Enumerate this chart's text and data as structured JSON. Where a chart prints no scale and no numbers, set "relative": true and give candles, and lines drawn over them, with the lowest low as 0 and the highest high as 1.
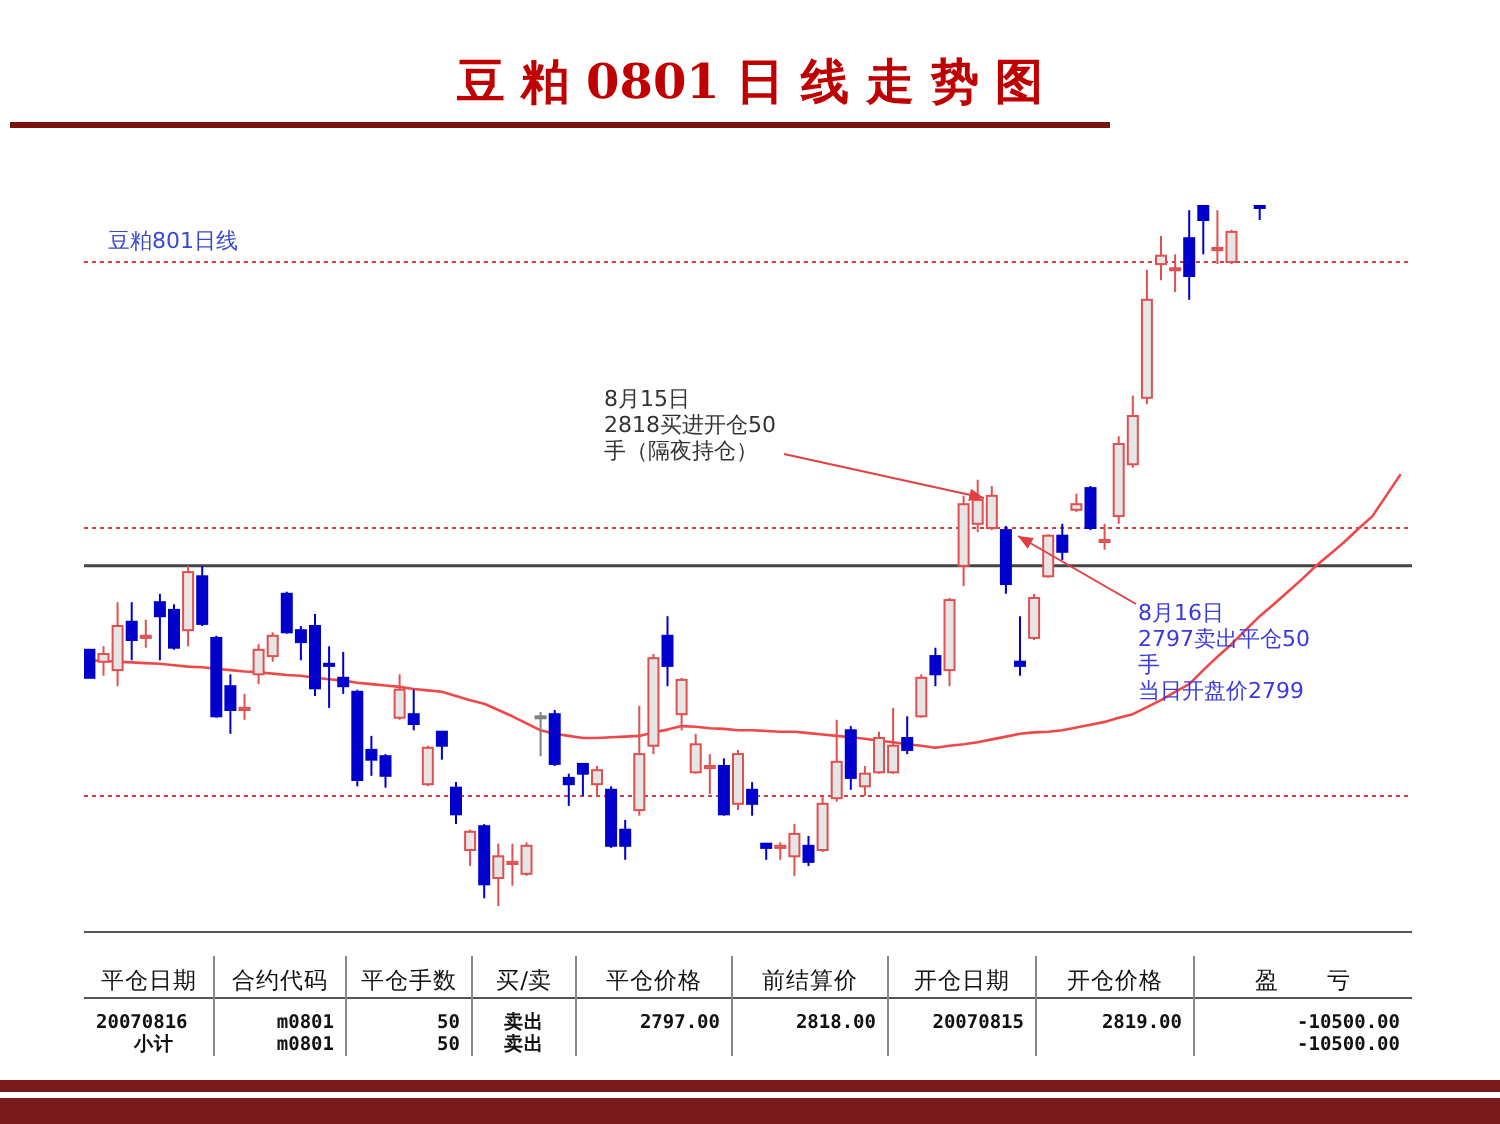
{
  "chart_data": {
    "type": "candlestick",
    "relative": true,
    "title": "豆 粕 0801 日 线 走 势 图",
    "subtitle": "豆粕801日线",
    "categories": [
      null,
      null,
      null,
      null,
      null,
      null,
      null,
      null,
      null,
      null,
      null,
      null,
      null,
      null,
      null,
      null,
      null,
      null,
      null,
      null,
      null,
      null,
      null,
      null,
      null,
      null,
      null,
      null,
      null,
      null,
      null,
      null,
      null,
      null,
      null,
      null,
      null,
      null,
      null,
      null,
      null,
      null,
      null,
      null,
      null,
      null,
      null,
      null,
      null,
      null,
      null,
      null,
      null,
      null,
      null,
      null,
      null,
      null,
      null,
      null,
      null,
      null,
      null,
      null,
      null,
      null,
      null,
      null,
      null,
      null,
      null,
      null,
      null,
      null,
      null,
      null,
      null,
      null,
      null,
      null,
      null,
      null,
      null,
      null,
      null,
      null,
      null,
      null,
      null,
      null,
      null,
      null,
      null,
      null
    ],
    "ohlc": [
      [
        0.366,
        0.366,
        0.326,
        0.326
      ],
      [
        0.349,
        0.371,
        0.329,
        0.36
      ],
      [
        0.337,
        0.434,
        0.314,
        0.4
      ],
      [
        0.406,
        0.434,
        0.351,
        0.38
      ],
      [
        0.383,
        0.409,
        0.369,
        0.386
      ],
      [
        0.434,
        0.446,
        0.351,
        0.414
      ],
      [
        0.423,
        0.431,
        0.366,
        0.369
      ],
      [
        0.394,
        0.486,
        0.371,
        0.477
      ],
      [
        0.471,
        0.486,
        0.4,
        0.403
      ],
      [
        0.383,
        0.386,
        0.269,
        0.271
      ],
      [
        0.314,
        0.331,
        0.246,
        0.28
      ],
      [
        0.28,
        0.303,
        0.266,
        0.283
      ],
      [
        0.331,
        0.374,
        0.317,
        0.366
      ],
      [
        0.357,
        0.391,
        0.349,
        0.386
      ],
      [
        0.446,
        0.449,
        0.389,
        0.391
      ],
      [
        0.394,
        0.4,
        0.351,
        0.377
      ],
      [
        0.4,
        0.417,
        0.3,
        0.311
      ],
      [
        0.346,
        0.371,
        0.283,
        0.343
      ],
      [
        0.326,
        0.363,
        0.303,
        0.314
      ],
      [
        0.306,
        0.309,
        0.171,
        0.18
      ],
      [
        0.223,
        0.243,
        0.186,
        0.209
      ],
      [
        0.214,
        0.217,
        0.169,
        0.186
      ],
      [
        0.269,
        0.331,
        0.266,
        0.309
      ],
      [
        0.274,
        0.309,
        0.251,
        0.26
      ],
      [
        0.174,
        0.229,
        0.171,
        0.226
      ],
      [
        0.249,
        0.249,
        0.209,
        0.229
      ],
      [
        0.169,
        0.177,
        0.117,
        0.131
      ],
      [
        0.08,
        0.109,
        0.057,
        0.106
      ],
      [
        0.114,
        0.117,
        0.011,
        0.031
      ],
      [
        0.04,
        0.089,
        0.0,
        0.071
      ],
      [
        0.06,
        0.089,
        0.029,
        0.063
      ],
      [
        0.046,
        0.091,
        0.043,
        0.086
      ],
      [
        0.271,
        0.277,
        0.214,
        0.271
      ],
      [
        0.274,
        0.28,
        0.2,
        0.203
      ],
      [
        0.183,
        0.189,
        0.143,
        0.174
      ],
      [
        0.203,
        0.203,
        0.157,
        0.189
      ],
      [
        0.174,
        0.2,
        0.157,
        0.194
      ],
      [
        0.166,
        0.171,
        0.083,
        0.086
      ],
      [
        0.109,
        0.123,
        0.066,
        0.086
      ],
      [
        0.137,
        0.286,
        0.129,
        0.217
      ],
      [
        0.229,
        0.36,
        0.217,
        0.354
      ],
      [
        0.386,
        0.414,
        0.314,
        0.343
      ],
      [
        0.274,
        0.326,
        0.251,
        0.323
      ],
      [
        0.191,
        0.246,
        0.189,
        0.231
      ],
      [
        0.197,
        0.217,
        0.16,
        0.2
      ],
      [
        0.2,
        0.211,
        0.129,
        0.131
      ],
      [
        0.146,
        0.223,
        0.137,
        0.217
      ],
      [
        0.166,
        0.177,
        0.129,
        0.146
      ],
      [
        0.089,
        0.089,
        0.066,
        0.083
      ],
      [
        0.083,
        0.091,
        0.066,
        0.086
      ],
      [
        0.071,
        0.117,
        0.043,
        0.103
      ],
      [
        0.086,
        0.1,
        0.057,
        0.063
      ],
      [
        0.08,
        0.157,
        0.077,
        0.146
      ],
      [
        0.154,
        0.266,
        0.149,
        0.206
      ],
      [
        0.251,
        0.257,
        0.166,
        0.183
      ],
      [
        0.171,
        0.2,
        0.157,
        0.189
      ],
      [
        0.191,
        0.249,
        0.189,
        0.24
      ],
      [
        0.191,
        0.283,
        0.189,
        0.229
      ],
      [
        0.24,
        0.271,
        0.217,
        0.223
      ],
      [
        0.271,
        0.331,
        0.269,
        0.326
      ],
      [
        0.357,
        0.369,
        0.314,
        0.331
      ],
      [
        0.337,
        0.44,
        0.314,
        0.437
      ],
      [
        0.486,
        0.586,
        0.457,
        0.574
      ],
      [
        0.546,
        0.609,
        0.534,
        0.58
      ],
      [
        0.54,
        0.6,
        0.537,
        0.586
      ],
      [
        0.537,
        0.543,
        0.446,
        0.46
      ],
      [
        0.349,
        0.414,
        0.329,
        0.343
      ],
      [
        0.383,
        0.446,
        0.38,
        0.44
      ],
      [
        0.471,
        0.531,
        0.469,
        0.529
      ],
      [
        0.529,
        0.546,
        0.494,
        0.506
      ],
      [
        0.566,
        0.589,
        0.563,
        0.574
      ],
      [
        0.597,
        0.6,
        0.537,
        0.54
      ],
      [
        0.52,
        0.546,
        0.509,
        0.523
      ],
      [
        0.557,
        0.671,
        0.546,
        0.66
      ],
      [
        0.631,
        0.729,
        0.626,
        0.7
      ],
      [
        0.726,
        0.909,
        0.717,
        0.866
      ],
      [
        0.917,
        0.957,
        0.894,
        0.929
      ],
      [
        0.909,
        0.931,
        0.877,
        0.911
      ],
      [
        0.954,
        0.994,
        0.866,
        0.9
      ],
      [
        1,
        1,
        0.931,
        0.98
      ],
      [
        0.937,
        0.994,
        0.917,
        0.94
      ],
      [
        0.92,
        0.966,
        0.917,
        0.963
      ],
      null,
      [
        1,
        1,
        0.98,
        1
      ],
      null,
      null,
      null,
      null,
      null,
      null,
      null,
      null,
      null,
      null
    ],
    "colors": [
      "#0000cc",
      "#e05050",
      "#e05050",
      "#0000cc",
      "#e05050",
      "#0000cc",
      "#0000cc",
      "#e05050",
      "#0000cc",
      "#0000cc",
      "#0000cc",
      "#e05050",
      "#e05050",
      "#e05050",
      "#0000cc",
      "#0000cc",
      "#0000cc",
      "#0000cc",
      "#0000cc",
      "#0000cc",
      "#0000cc",
      "#0000cc",
      "#e05050",
      "#0000cc",
      "#e05050",
      "#0000cc",
      "#0000cc",
      "#e05050",
      "#0000cc",
      "#e05050",
      "#e05050",
      "#e05050",
      "#808080",
      "#0000cc",
      "#0000cc",
      "#0000cc",
      "#e05050",
      "#0000cc",
      "#0000cc",
      "#e05050",
      "#e05050",
      "#0000cc",
      "#e05050",
      "#e05050",
      "#e05050",
      "#0000cc",
      "#e05050",
      "#0000cc",
      "#0000cc",
      "#e05050",
      "#e05050",
      "#0000cc",
      "#e05050",
      "#e05050",
      "#0000cc",
      "#e05050",
      "#e05050",
      "#e05050",
      "#0000cc",
      "#e05050",
      "#0000cc",
      "#e05050",
      "#e05050",
      "#e05050",
      "#e05050",
      "#0000cc",
      "#0000cc",
      "#e05050",
      "#e05050",
      "#0000cc",
      "#e05050",
      "#0000cc",
      "#e05050",
      "#e05050",
      "#e05050",
      "#e05050",
      "#e05050",
      "#e05050",
      "#0000cc",
      "#0000cc",
      "#e05050",
      "#e05050",
      null,
      "#0000cc",
      null,
      null,
      null,
      null,
      null,
      null,
      null,
      null,
      null,
      null
    ],
    "series": [
      {
        "type": "line",
        "color": "#f04848",
        "values": [
          0.351,
          0.35,
          0.349,
          0.348,
          0.347,
          0.346,
          0.344,
          0.342,
          0.341,
          0.339,
          0.337,
          0.335,
          0.334,
          0.332,
          0.33,
          0.329,
          0.326,
          0.324,
          0.322,
          0.319,
          0.317,
          0.315,
          0.313,
          0.31,
          0.308,
          0.306,
          0.3,
          0.294,
          0.289,
          0.28,
          0.271,
          0.261,
          0.251,
          0.246,
          0.243,
          0.24,
          0.24,
          0.241,
          0.242,
          0.243,
          0.248,
          0.252,
          0.257,
          0.256,
          0.254,
          0.253,
          0.251,
          0.251,
          0.25,
          0.249,
          0.249,
          0.247,
          0.245,
          0.243,
          0.241,
          0.239,
          0.236,
          0.234,
          0.231,
          0.229,
          0.226,
          0.229,
          0.231,
          0.234,
          0.238,
          0.242,
          0.246,
          0.248,
          0.249,
          0.251,
          0.255,
          0.259,
          0.263,
          0.269,
          0.274,
          0.284,
          0.294,
          0.306,
          0.317,
          0.337,
          0.356,
          0.374,
          0.394,
          0.414,
          0.431,
          0.449,
          0.467,
          0.486,
          0.503,
          0.52,
          0.539,
          0.557,
          0.587,
          0.617
        ]
      }
    ],
    "ref_lines": [
      {
        "axis": "y",
        "value": 0.92,
        "color": "#d04040",
        "line_style": "dotted"
      },
      {
        "axis": "y",
        "value": 0.54,
        "color": "#d04040",
        "line_style": "dotted"
      },
      {
        "axis": "y",
        "value": 0.486,
        "color": "#444444",
        "line_style": "solid"
      },
      {
        "axis": "y",
        "value": 0.157,
        "color": "#d04040",
        "line_style": "dotted"
      }
    ],
    "annotations": [
      "8月15日",
      "2818买进开仓50手（隔夜持仓）",
      "8月16日",
      "2797卖出平仓50手",
      "当日开盘价2799",
      "平仓日期",
      "合约代码",
      "平仓手数",
      "买/卖",
      "平仓价格",
      "前结算价",
      "开仓日期",
      "开仓价格",
      "盈　　亏",
      "20070816",
      "m0801",
      "50",
      "卖出",
      "2797.00",
      "2818.00",
      "20070815",
      "2819.00",
      "-10500.00",
      "小计",
      "m0801",
      "50",
      "卖出",
      "-10500.00"
    ]
  }
}
